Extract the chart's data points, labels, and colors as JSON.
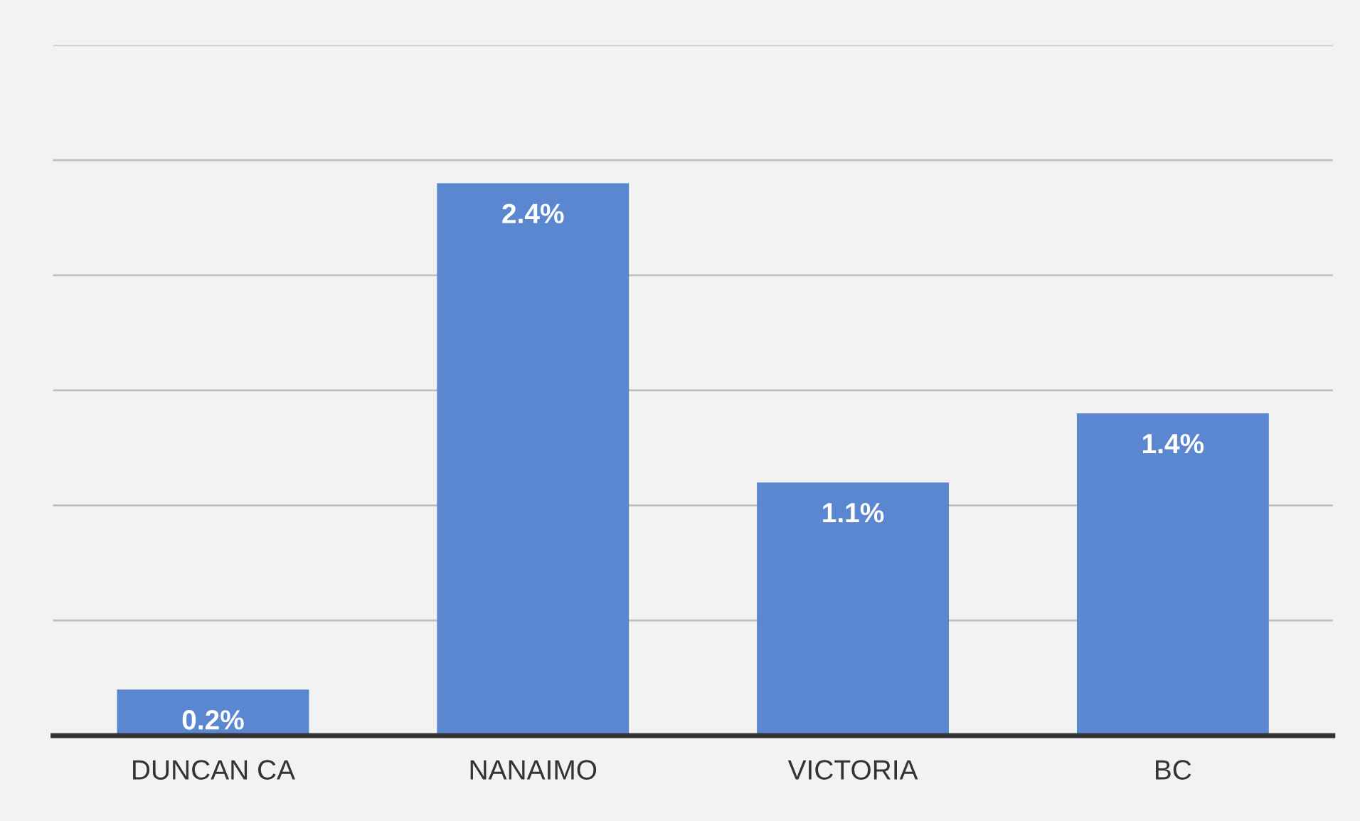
{
  "chart_data": {
    "type": "bar",
    "categories": [
      "DUNCAN CA",
      "NANAIMO",
      "VICTORIA",
      "BC"
    ],
    "values": [
      0.2,
      2.4,
      1.1,
      1.4
    ],
    "value_labels": [
      "0.2%",
      "2.4%",
      "1.1%",
      "1.4%"
    ],
    "color": "#5b87d1",
    "ylim": [
      0,
      3
    ],
    "yticks": [
      {
        "value": 0,
        "label": null
      },
      {
        "value": 0.5,
        "label": null
      },
      {
        "value": 1,
        "label": null
      },
      {
        "value": 1.5,
        "label": null
      },
      {
        "value": 2,
        "label": null
      },
      {
        "value": 2.5,
        "label": null
      },
      {
        "value": 3,
        "label": null
      }
    ],
    "tick_labels": "x",
    "grid": "y"
  }
}
